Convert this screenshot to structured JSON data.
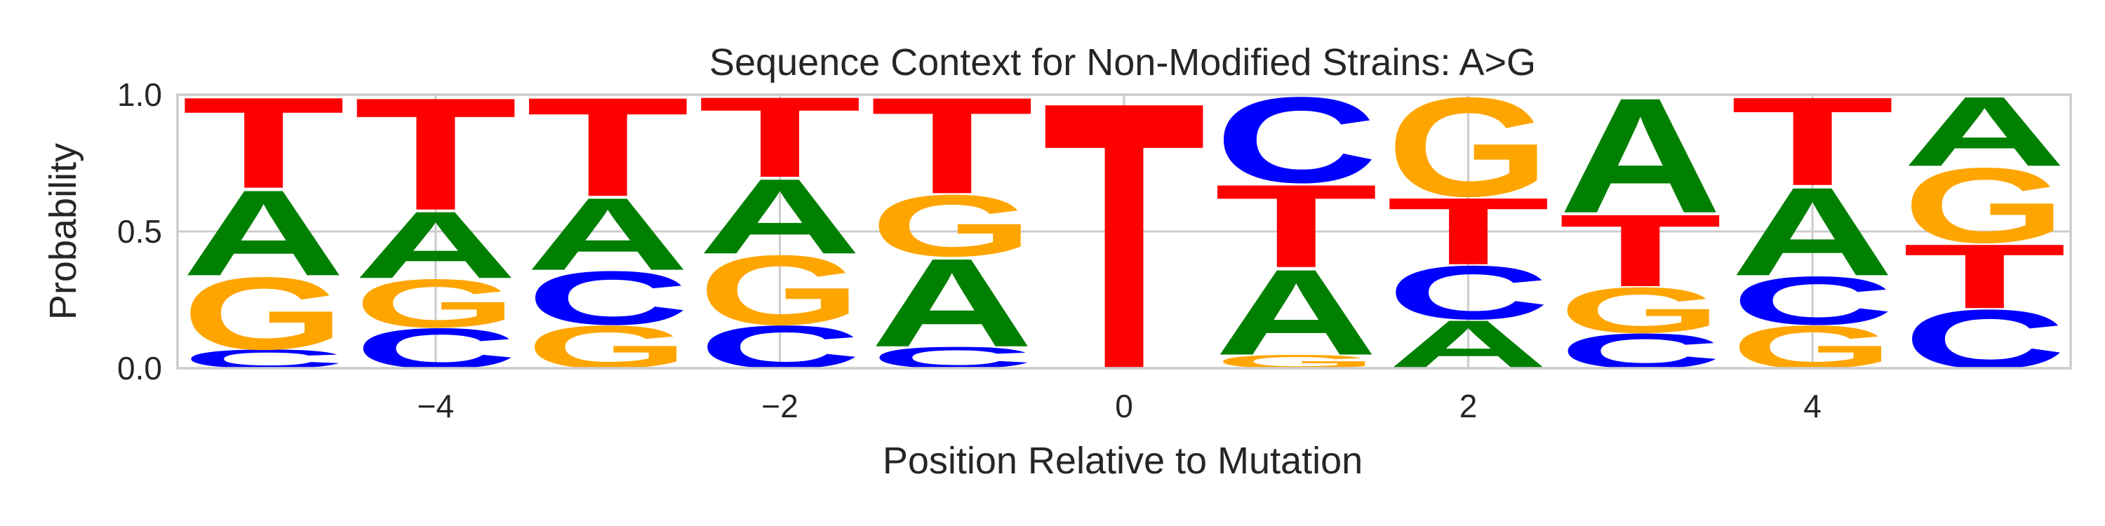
{
  "chart_data": {
    "type": "sequence-logo",
    "title": "Sequence Context for Non-Modified Strains: A>G",
    "xlabel": "Position Relative to Mutation",
    "ylabel": "Probability",
    "xlim": [
      -5.5,
      5.5
    ],
    "ylim": [
      0,
      1
    ],
    "xticks": [
      -4,
      -2,
      0,
      2,
      4
    ],
    "xtick_labels": [
      "−4",
      "−2",
      "0",
      "2",
      "4"
    ],
    "yticks": [
      0,
      0.5,
      1
    ],
    "ytick_labels": [
      "0.0",
      "0.5",
      "1.0"
    ],
    "grid": true,
    "colors": {
      "A": "#008000",
      "C": "#0000ff",
      "G": "#ffa500",
      "T": "#ff0000"
    },
    "positions": [
      {
        "pos": -5,
        "stack": [
          {
            "base": "C",
            "value": 0.07
          },
          {
            "base": "G",
            "value": 0.27
          },
          {
            "base": "A",
            "value": 0.32
          },
          {
            "base": "T",
            "value": 0.34
          }
        ]
      },
      {
        "pos": -4,
        "stack": [
          {
            "base": "C",
            "value": 0.15
          },
          {
            "base": "G",
            "value": 0.18
          },
          {
            "base": "A",
            "value": 0.25
          },
          {
            "base": "T",
            "value": 0.42
          }
        ]
      },
      {
        "pos": -3,
        "stack": [
          {
            "base": "G",
            "value": 0.16
          },
          {
            "base": "C",
            "value": 0.2
          },
          {
            "base": "A",
            "value": 0.27
          },
          {
            "base": "T",
            "value": 0.37
          }
        ]
      },
      {
        "pos": -2,
        "stack": [
          {
            "base": "C",
            "value": 0.16
          },
          {
            "base": "G",
            "value": 0.26
          },
          {
            "base": "A",
            "value": 0.28
          },
          {
            "base": "T",
            "value": 0.3
          }
        ]
      },
      {
        "pos": -1,
        "stack": [
          {
            "base": "C",
            "value": 0.08
          },
          {
            "base": "A",
            "value": 0.33
          },
          {
            "base": "G",
            "value": 0.23
          },
          {
            "base": "T",
            "value": 0.36
          }
        ]
      },
      {
        "pos": 0,
        "stack": [
          {
            "base": "T",
            "value": 1.0
          }
        ]
      },
      {
        "pos": 1,
        "stack": [
          {
            "base": "G",
            "value": 0.05
          },
          {
            "base": "A",
            "value": 0.32
          },
          {
            "base": "T",
            "value": 0.31
          },
          {
            "base": "C",
            "value": 0.32
          }
        ]
      },
      {
        "pos": 2,
        "stack": [
          {
            "base": "A",
            "value": 0.18
          },
          {
            "base": "C",
            "value": 0.2
          },
          {
            "base": "T",
            "value": 0.25
          },
          {
            "base": "G",
            "value": 0.37
          }
        ]
      },
      {
        "pos": 3,
        "stack": [
          {
            "base": "C",
            "value": 0.13
          },
          {
            "base": "G",
            "value": 0.17
          },
          {
            "base": "T",
            "value": 0.27
          },
          {
            "base": "A",
            "value": 0.43
          }
        ]
      },
      {
        "pos": 4,
        "stack": [
          {
            "base": "G",
            "value": 0.16
          },
          {
            "base": "C",
            "value": 0.18
          },
          {
            "base": "A",
            "value": 0.33
          },
          {
            "base": "T",
            "value": 0.33
          }
        ]
      },
      {
        "pos": 5,
        "stack": [
          {
            "base": "C",
            "value": 0.22
          },
          {
            "base": "T",
            "value": 0.24
          },
          {
            "base": "G",
            "value": 0.28
          },
          {
            "base": "A",
            "value": 0.26
          }
        ]
      }
    ]
  }
}
